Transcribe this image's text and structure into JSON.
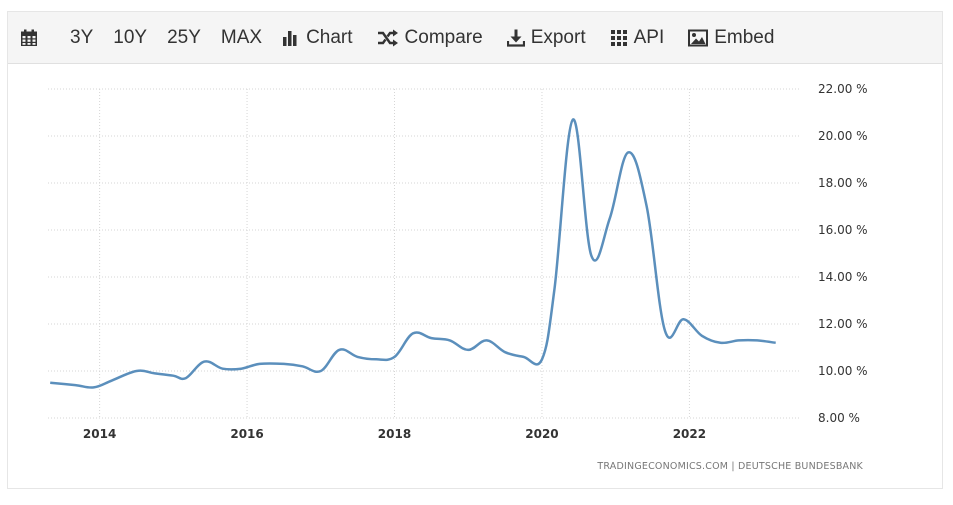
{
  "toolbar": {
    "calendar_icon": "calendar-icon",
    "items": [
      {
        "label": "3Y"
      },
      {
        "label": "10Y"
      },
      {
        "label": "25Y"
      },
      {
        "label": "MAX"
      },
      {
        "label": "Chart",
        "icon": "bar-chart-icon"
      },
      {
        "label": "Compare",
        "icon": "shuffle-icon"
      },
      {
        "label": "Export",
        "icon": "download-icon"
      },
      {
        "label": "API",
        "icon": "grid-icon"
      },
      {
        "label": "Embed",
        "icon": "image-icon"
      }
    ]
  },
  "colors": {
    "line": "#5b8fbc",
    "grid": "#d6d6d6",
    "toolbar_bg": "#f5f5f5"
  },
  "source_text": "TRADINGECONOMICS.COM  |  DEUTSCHE BUNDESBANK",
  "chart_data": {
    "type": "line",
    "title": "",
    "xlabel": "",
    "ylabel": "",
    "ylim": [
      8,
      22
    ],
    "xlim": [
      2013.3,
      2023.5
    ],
    "y_ticks": [
      8,
      10,
      12,
      14,
      16,
      18,
      20,
      22
    ],
    "y_tick_labels": [
      "8.00 %",
      "10.00 %",
      "12.00 %",
      "14.00 %",
      "16.00 %",
      "18.00 %",
      "20.00 %",
      "22.00 %"
    ],
    "x_ticks": [
      2014,
      2016,
      2018,
      2020,
      2022
    ],
    "x_tick_labels": [
      "2014",
      "2016",
      "2018",
      "2020",
      "2022"
    ],
    "grid": true,
    "legend": "none",
    "series": [
      {
        "x": [
          2013.33,
          2013.67,
          2013.92,
          2014.17,
          2014.5,
          2014.75,
          2015.0,
          2015.17,
          2015.42,
          2015.67,
          2015.92,
          2016.17,
          2016.5,
          2016.75,
          2017.0,
          2017.25,
          2017.5,
          2017.75,
          2018.0,
          2018.25,
          2018.5,
          2018.75,
          2019.0,
          2019.25,
          2019.5,
          2019.75,
          2020.0,
          2020.17,
          2020.42,
          2020.67,
          2020.92,
          2021.17,
          2021.42,
          2021.67,
          2021.92,
          2022.17,
          2022.42,
          2022.67,
          2022.92,
          2023.17
        ],
        "y": [
          9.5,
          9.4,
          9.3,
          9.6,
          10.0,
          9.9,
          9.8,
          9.7,
          10.4,
          10.1,
          10.1,
          10.3,
          10.3,
          10.2,
          10.0,
          10.9,
          10.6,
          10.5,
          10.6,
          11.6,
          11.4,
          11.3,
          10.9,
          11.3,
          10.8,
          10.6,
          10.5,
          13.5,
          20.7,
          14.9,
          16.5,
          19.3,
          17.0,
          11.7,
          12.2,
          11.5,
          11.2,
          11.3,
          11.3,
          11.2
        ]
      }
    ]
  }
}
